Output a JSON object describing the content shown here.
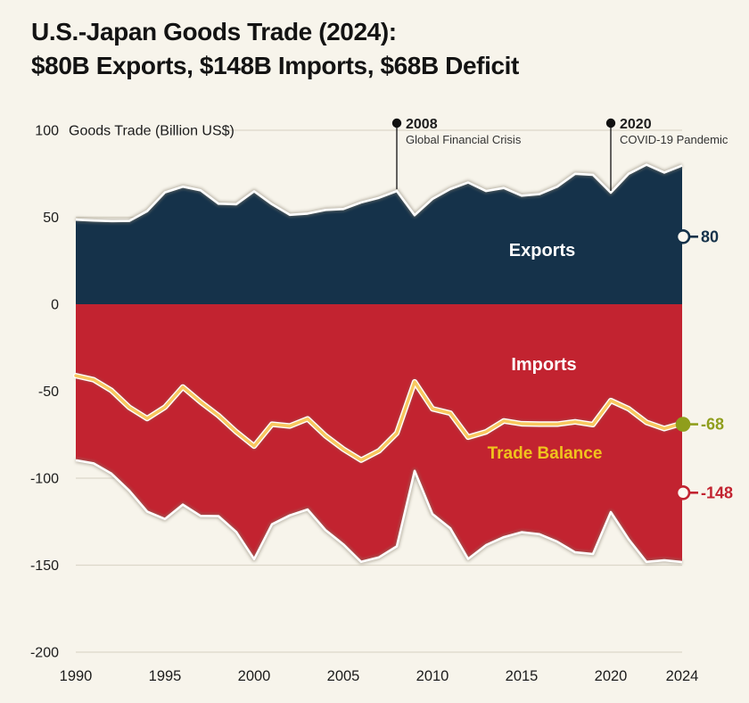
{
  "title": {
    "line1": "U.S.-Japan Goods Trade (2024):",
    "line2": "$80B Exports, $148B Imports, $68B Deficit"
  },
  "colors": {
    "background": "#f7f4eb",
    "exports": "#15324a",
    "imports": "#c22330",
    "balance_line": "#f8c860",
    "balance_label": "#f0c31d",
    "balance_marker": "#8f9e1c",
    "grid": "#dcd7c9",
    "text": "#1c1c1c",
    "annotation_text": "#333333",
    "edge": "#ffffff",
    "series_label": "#ffffff",
    "annotation_dot": "#111111"
  },
  "chart_data": {
    "type": "area",
    "title": "Goods Trade (Billion US$)",
    "xlabel": "",
    "ylabel": "Goods Trade (Billion US$)",
    "xlim": [
      1990,
      2024
    ],
    "ylim": [
      -200,
      100
    ],
    "grid": true,
    "legend_position": "labels-inside-plot",
    "x": [
      1990,
      1991,
      1992,
      1993,
      1994,
      1995,
      1996,
      1997,
      1998,
      1999,
      2000,
      2001,
      2002,
      2003,
      2004,
      2005,
      2006,
      2007,
      2008,
      2009,
      2010,
      2011,
      2012,
      2013,
      2014,
      2015,
      2016,
      2017,
      2018,
      2019,
      2020,
      2021,
      2022,
      2023,
      2024
    ],
    "series": [
      {
        "name": "Exports",
        "values": [
          48.6,
          48.1,
          47.8,
          47.9,
          53.5,
          64.3,
          67.6,
          65.5,
          57.8,
          57.5,
          64.9,
          57.5,
          51.4,
          52.1,
          54.2,
          54.7,
          58.5,
          61.2,
          65.1,
          51.2,
          60.5,
          66.2,
          70.0,
          65.1,
          66.8,
          62.4,
          63.3,
          67.6,
          75.0,
          74.4,
          64.1,
          75.0,
          80.2,
          75.7,
          79.7
        ]
      },
      {
        "name": "Imports",
        "values": [
          -89.7,
          -91.5,
          -97.4,
          -107.2,
          -119.2,
          -123.5,
          -115.2,
          -121.7,
          -121.8,
          -130.9,
          -146.5,
          -126.5,
          -121.4,
          -118.0,
          -129.8,
          -138.0,
          -148.1,
          -145.5,
          -139.2,
          -95.8,
          -120.6,
          -128.8,
          -146.4,
          -138.5,
          -133.9,
          -131.1,
          -132.2,
          -136.5,
          -142.6,
          -143.6,
          -119.5,
          -135.1,
          -148.1,
          -147.2,
          -148.2
        ]
      },
      {
        "name": "Trade Balance",
        "values": [
          -41.1,
          -43.4,
          -49.6,
          -59.3,
          -65.7,
          -59.2,
          -47.6,
          -56.2,
          -64.0,
          -73.4,
          -81.6,
          -69.0,
          -70.0,
          -65.9,
          -75.6,
          -83.3,
          -89.6,
          -84.3,
          -74.1,
          -44.6,
          -60.1,
          -62.6,
          -76.4,
          -73.4,
          -67.1,
          -68.7,
          -68.9,
          -68.9,
          -67.6,
          -69.2,
          -55.4,
          -60.1,
          -67.9,
          -71.5,
          -68.5
        ]
      }
    ],
    "x_ticks": [
      1990,
      1995,
      2000,
      2005,
      2010,
      2015,
      2020,
      2024
    ],
    "y_ticks": [
      100,
      50,
      0,
      -50,
      -100,
      -150,
      -200
    ],
    "annotations": [
      {
        "year": 2008,
        "label": "2008",
        "text": "Global Financial Crisis"
      },
      {
        "year": 2020,
        "label": "2020",
        "text": "COVID-19 Pandemic"
      }
    ],
    "end_labels": [
      {
        "text": "80",
        "series": "Exports",
        "marker": "open"
      },
      {
        "text": "-68",
        "series": "Trade Balance",
        "marker": "filled"
      },
      {
        "text": "-148",
        "series": "Imports",
        "marker": "open"
      }
    ]
  }
}
